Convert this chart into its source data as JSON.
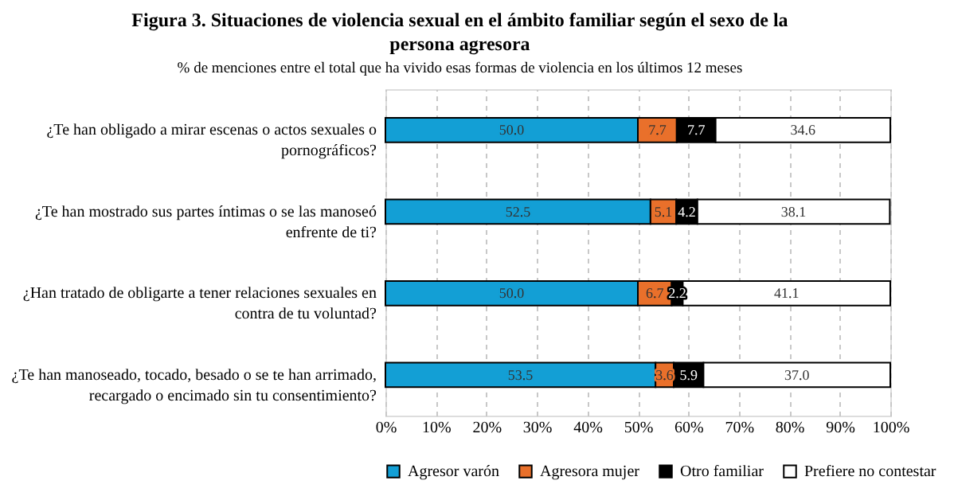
{
  "chart_data": {
    "type": "bar",
    "orientation": "horizontal",
    "stacked": true,
    "title": "Figura 3. Situaciones de violencia sexual en el ámbito familiar según el sexo de la persona agresora",
    "subtitle": "% de menciones entre el total que ha vivido esas formas de violencia en los últimos 12 meses",
    "categories": [
      "¿Te han obligado a mirar escenas o actos sexuales o pornográficos?",
      "¿Te han mostrado sus partes íntimas o se las manoseó enfrente de ti?",
      "¿Han tratado de obligarte a tener relaciones sexuales en contra de tu voluntad?",
      "¿Te han manoseado, tocado, besado o se te han arrimado, recargado o encimado sin tu consentimiento?"
    ],
    "series": [
      {
        "name": "Agresor varón",
        "color": "#139fd5",
        "values": [
          50.0,
          52.5,
          50.0,
          53.5
        ],
        "value_labels": [
          "50.0",
          "52.5",
          "50.0",
          "53.5"
        ]
      },
      {
        "name": "Agresora mujer",
        "color": "#e9702b",
        "values": [
          7.7,
          5.1,
          6.7,
          3.6
        ],
        "value_labels": [
          "7.7",
          "5.1",
          "6.7",
          "3.6"
        ]
      },
      {
        "name": "Otro familiar",
        "color": "#000000",
        "values": [
          7.7,
          4.2,
          2.2,
          5.9
        ],
        "value_labels": [
          "7.7",
          "4.2",
          "2.2",
          "5.9"
        ]
      },
      {
        "name": "Prefiere no contestar",
        "color": "#ffffff",
        "values": [
          34.6,
          38.1,
          41.1,
          37.0
        ],
        "value_labels": [
          "34.6",
          "38.1",
          "41.1",
          "37.0"
        ]
      }
    ],
    "xlim": [
      0,
      100
    ],
    "xticks": [
      {
        "value": 0,
        "label": "0%"
      },
      {
        "value": 10,
        "label": "10%"
      },
      {
        "value": 20,
        "label": "20%"
      },
      {
        "value": 30,
        "label": "30%"
      },
      {
        "value": 40,
        "label": "40%"
      },
      {
        "value": 50,
        "label": "50%"
      },
      {
        "value": 60,
        "label": "60%"
      },
      {
        "value": 70,
        "label": "70%"
      },
      {
        "value": 80,
        "label": "80%"
      },
      {
        "value": 90,
        "label": "90%"
      },
      {
        "value": 100,
        "label": "100%"
      }
    ],
    "grid": "x",
    "legend": "bottom"
  }
}
